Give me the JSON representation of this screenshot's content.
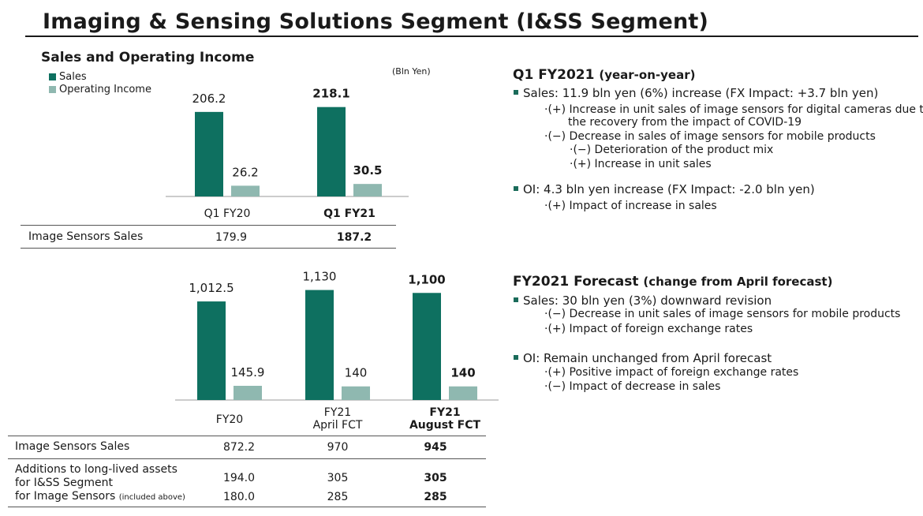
{
  "title": "Imaging & Sensing Solutions Segment (I&SS Segment)",
  "subtitle": "Sales and Operating Income",
  "unit": "(Bln Yen)",
  "colors": {
    "sales": "#0e7060",
    "oi": "#8fb8b0"
  },
  "legend": {
    "sales": "Sales",
    "oi": "Operating Income"
  },
  "chart_data": [
    {
      "type": "bar",
      "categories": [
        "Q1 FY20",
        "Q1 FY21"
      ],
      "series": [
        {
          "name": "Sales",
          "values": [
            206.2,
            218.1
          ],
          "labels": [
            "206.2",
            "218.1"
          ]
        },
        {
          "name": "Operating Income",
          "values": [
            26.2,
            30.5
          ],
          "labels": [
            "26.2",
            "30.5"
          ]
        }
      ],
      "bold_category_index": 1
    },
    {
      "type": "bar",
      "categories": [
        "FY20",
        "FY21 April FCT",
        "FY21 August FCT"
      ],
      "category_lines": [
        [
          "FY20"
        ],
        [
          "FY21",
          "April FCT"
        ],
        [
          "FY21",
          "August FCT"
        ]
      ],
      "series": [
        {
          "name": "Sales",
          "values": [
            1012.5,
            1130,
            1100
          ],
          "labels": [
            "1,012.5",
            "1,130",
            "1,100"
          ]
        },
        {
          "name": "Operating Income",
          "values": [
            145.9,
            140,
            140
          ],
          "labels": [
            "145.9",
            "140",
            "140"
          ]
        }
      ],
      "bold_category_index": 2
    }
  ],
  "table1": {
    "row_label": "Image Sensors Sales",
    "values": [
      "179.9",
      "187.2"
    ]
  },
  "table2": {
    "row1_label": "Image Sensors Sales",
    "row1_values": [
      "872.2",
      "970",
      "945"
    ],
    "row2_label_a": "Additions to long-lived assets",
    "row2_label_b": "for I&SS Segment",
    "row2_label_c": "for Image Sensors",
    "row2_label_c_note": "(included above)",
    "row2_values": [
      "194.0",
      "305",
      "305"
    ],
    "row3_values": [
      "180.0",
      "285",
      "285"
    ]
  },
  "q1": {
    "heading": "Q1 FY2021",
    "heading_note": "(year-on-year)",
    "sales_line": "Sales: 11.9 bln yen (6%) increase (FX Impact: +3.7 bln yen)",
    "s1": "·(+) Increase in unit sales of image sensors for digital cameras due to",
    "s1b": "the recovery from the impact of COVID-19",
    "s2": "·(−) Decrease in sales of image sensors for mobile products",
    "s3": "·(−) Deterioration of the product mix",
    "s4": "·(+) Increase in unit sales",
    "oi_line": "OI: 4.3 bln yen increase (FX Impact: -2.0 bln yen)",
    "o1": "·(+) Impact of increase in sales"
  },
  "fc": {
    "heading": "FY2021 Forecast",
    "heading_note": "(change from April forecast)",
    "sales_line": "Sales:  30 bln yen (3%) downward revision",
    "s1": "·(−) Decrease in unit sales of image sensors for mobile products",
    "s2": "·(+) Impact of foreign exchange rates",
    "oi_line": "OI: Remain unchanged from April forecast",
    "o1": "·(+) Positive impact of foreign exchange rates",
    "o2": "·(−) Impact of decrease in sales"
  }
}
